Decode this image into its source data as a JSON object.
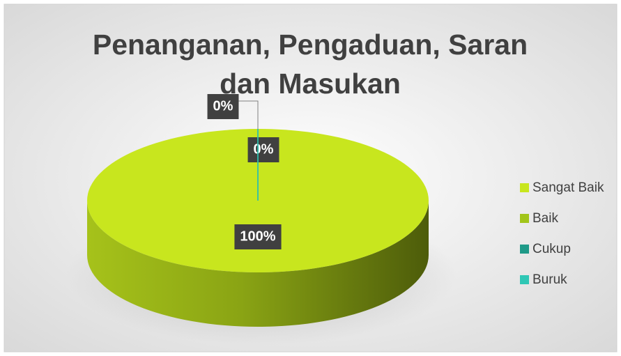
{
  "chart_data": {
    "type": "pie",
    "title": "Penanganan, Pengaduan, Saran dan Masukan",
    "categories": [
      "Sangat Baik",
      "Baik",
      "Cukup",
      "Buruk"
    ],
    "values": [
      100,
      0,
      0,
      0
    ],
    "value_labels": [
      "100%",
      "0%",
      "0%",
      null
    ],
    "colors": [
      "#c8e61e",
      "#a2c51a",
      "#1f9a88",
      "#2fc7b5"
    ],
    "legend": "right"
  }
}
